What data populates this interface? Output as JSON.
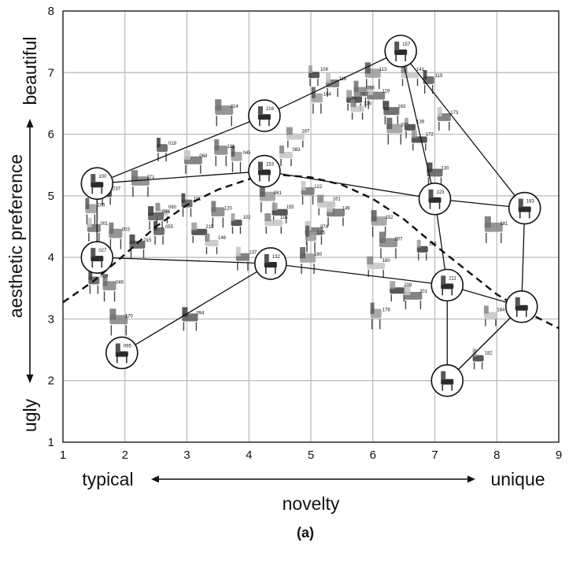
{
  "chart_data": {
    "type": "scatter",
    "caption": "(a)",
    "xlim": [
      1,
      9
    ],
    "ylim": [
      1,
      8
    ],
    "x_ticks": [
      1,
      2,
      3,
      4,
      5,
      6,
      7,
      8,
      9
    ],
    "y_ticks": [
      1,
      2,
      3,
      4,
      5,
      6,
      7,
      8
    ],
    "grid": true,
    "x_axis": {
      "title": "novelty",
      "low_label": "typical",
      "high_label": "unique"
    },
    "y_axis": {
      "title": "aesthetic  preference",
      "low_label": "ugly",
      "high_label": "beautiful"
    },
    "trend_curve": {
      "style": "dashed",
      "points": [
        [
          1.0,
          3.27
        ],
        [
          1.5,
          3.62
        ],
        [
          2.0,
          4.05
        ],
        [
          2.5,
          4.5
        ],
        [
          3.0,
          4.85
        ],
        [
          3.5,
          5.1
        ],
        [
          4.0,
          5.27
        ],
        [
          4.5,
          5.34
        ],
        [
          5.0,
          5.3
        ],
        [
          5.5,
          5.18
        ],
        [
          6.0,
          4.95
        ],
        [
          6.5,
          4.62
        ],
        [
          7.0,
          4.2
        ],
        [
          7.5,
          3.8
        ],
        [
          8.0,
          3.4
        ],
        [
          8.5,
          3.1
        ],
        [
          9.0,
          2.85
        ]
      ]
    },
    "circled_points": [
      {
        "id": "157",
        "x": 6.45,
        "y": 7.35
      },
      {
        "id": "216",
        "x": 4.25,
        "y": 6.3
      },
      {
        "id": "100",
        "x": 1.55,
        "y": 5.2
      },
      {
        "id": "153",
        "x": 4.25,
        "y": 5.4
      },
      {
        "id": "123",
        "x": 7.0,
        "y": 4.95
      },
      {
        "id": "193",
        "x": 8.45,
        "y": 4.8
      },
      {
        "id": "027",
        "x": 1.55,
        "y": 4.0
      },
      {
        "id": "132",
        "x": 4.35,
        "y": 3.9
      },
      {
        "id": "211",
        "x": 7.2,
        "y": 3.55
      },
      {
        "id": "",
        "x": 8.4,
        "y": 3.2
      },
      {
        "id": "095",
        "x": 1.95,
        "y": 2.45
      },
      {
        "id": "",
        "x": 7.2,
        "y": 2.0
      }
    ],
    "outline_lines": [
      [
        [
          1.55,
          5.2
        ],
        [
          4.25,
          6.3
        ],
        [
          6.45,
          7.35
        ],
        [
          7.0,
          4.95
        ],
        [
          8.45,
          4.8
        ],
        [
          8.4,
          3.2
        ],
        [
          7.2,
          2.0
        ],
        [
          7.2,
          3.55
        ],
        [
          7.0,
          4.95
        ]
      ],
      [
        [
          6.45,
          7.35
        ],
        [
          8.45,
          4.8
        ]
      ],
      [
        [
          1.55,
          5.2
        ],
        [
          4.25,
          5.4
        ],
        [
          7.0,
          4.95
        ]
      ],
      [
        [
          1.55,
          5.2
        ],
        [
          1.55,
          4.0
        ],
        [
          4.35,
          3.9
        ],
        [
          7.2,
          3.55
        ],
        [
          8.4,
          3.2
        ]
      ],
      [
        [
          1.95,
          2.45
        ],
        [
          4.35,
          3.9
        ]
      ],
      [
        [
          8.4,
          3.2
        ],
        [
          7.2,
          2.0
        ]
      ]
    ],
    "labeled_points": [
      {
        "id": "108",
        "x": 5.05,
        "y": 6.95
      },
      {
        "id": "116",
        "x": 5.35,
        "y": 6.8
      },
      {
        "id": "113",
        "x": 6.0,
        "y": 6.95
      },
      {
        "id": "141",
        "x": 6.6,
        "y": 6.95
      },
      {
        "id": "119",
        "x": 6.9,
        "y": 6.85
      },
      {
        "id": "066",
        "x": 5.8,
        "y": 6.65
      },
      {
        "id": "067",
        "x": 5.7,
        "y": 6.55
      },
      {
        "id": "119",
        "x": 6.05,
        "y": 6.6
      },
      {
        "id": "164",
        "x": 5.1,
        "y": 6.55
      },
      {
        "id": "136",
        "x": 5.75,
        "y": 6.4
      },
      {
        "id": "163",
        "x": 6.3,
        "y": 6.35
      },
      {
        "id": "214",
        "x": 3.6,
        "y": 6.35
      },
      {
        "id": "139",
        "x": 6.6,
        "y": 6.1
      },
      {
        "id": "173",
        "x": 7.15,
        "y": 6.25
      },
      {
        "id": "205",
        "x": 6.35,
        "y": 6.05
      },
      {
        "id": "187",
        "x": 4.75,
        "y": 5.95
      },
      {
        "id": "019",
        "x": 2.6,
        "y": 5.75
      },
      {
        "id": "111",
        "x": 3.55,
        "y": 5.7
      },
      {
        "id": "172",
        "x": 6.75,
        "y": 5.9
      },
      {
        "id": "068",
        "x": 3.1,
        "y": 5.55
      },
      {
        "id": "045",
        "x": 3.8,
        "y": 5.6
      },
      {
        "id": "083",
        "x": 4.6,
        "y": 5.65
      },
      {
        "id": "130",
        "x": 7.0,
        "y": 5.35
      },
      {
        "id": "271",
        "x": 2.25,
        "y": 5.2
      },
      {
        "id": "237",
        "x": 1.7,
        "y": 5.02
      },
      {
        "id": "122",
        "x": 4.95,
        "y": 5.05
      },
      {
        "id": "061",
        "x": 4.3,
        "y": 4.95
      },
      {
        "id": "161",
        "x": 5.25,
        "y": 4.85
      },
      {
        "id": "101",
        "x": 3.0,
        "y": 4.85
      },
      {
        "id": "120",
        "x": 3.5,
        "y": 4.7
      },
      {
        "id": "155",
        "x": 4.5,
        "y": 4.72
      },
      {
        "id": "149",
        "x": 5.4,
        "y": 4.7
      },
      {
        "id": "106",
        "x": 1.45,
        "y": 4.75
      },
      {
        "id": "060",
        "x": 2.6,
        "y": 4.72
      },
      {
        "id": "044",
        "x": 2.5,
        "y": 4.64
      },
      {
        "id": "181",
        "x": 7.95,
        "y": 4.45
      },
      {
        "id": "102",
        "x": 3.8,
        "y": 4.55
      },
      {
        "id": "001",
        "x": 1.5,
        "y": 4.45
      },
      {
        "id": "152",
        "x": 6.1,
        "y": 4.55
      },
      {
        "id": "118",
        "x": 4.4,
        "y": 4.55
      },
      {
        "id": "055",
        "x": 2.55,
        "y": 4.4
      },
      {
        "id": "003",
        "x": 1.85,
        "y": 4.35
      },
      {
        "id": "215",
        "x": 3.2,
        "y": 4.4
      },
      {
        "id": "974",
        "x": 5.05,
        "y": 4.4
      },
      {
        "id": "125",
        "x": 5.0,
        "y": 4.3
      },
      {
        "id": "148",
        "x": 3.4,
        "y": 4.22
      },
      {
        "id": "015",
        "x": 2.2,
        "y": 4.18
      },
      {
        "id": "207",
        "x": 6.25,
        "y": 4.2
      },
      {
        "id": "188",
        "x": 6.8,
        "y": 4.12
      },
      {
        "id": "137",
        "x": 3.9,
        "y": 3.98
      },
      {
        "id": "160",
        "x": 4.95,
        "y": 3.95
      },
      {
        "id": "180",
        "x": 6.05,
        "y": 3.85
      },
      {
        "id": "029",
        "x": 1.5,
        "y": 3.6
      },
      {
        "id": "046",
        "x": 1.75,
        "y": 3.5
      },
      {
        "id": "208",
        "x": 6.4,
        "y": 3.45
      },
      {
        "id": "201",
        "x": 6.65,
        "y": 3.35
      },
      {
        "id": "178",
        "x": 6.05,
        "y": 3.05
      },
      {
        "id": "184",
        "x": 7.9,
        "y": 3.05
      },
      {
        "id": "094",
        "x": 3.05,
        "y": 3.0
      },
      {
        "id": "170",
        "x": 1.9,
        "y": 2.95
      },
      {
        "id": "182",
        "x": 7.7,
        "y": 2.35
      }
    ]
  }
}
